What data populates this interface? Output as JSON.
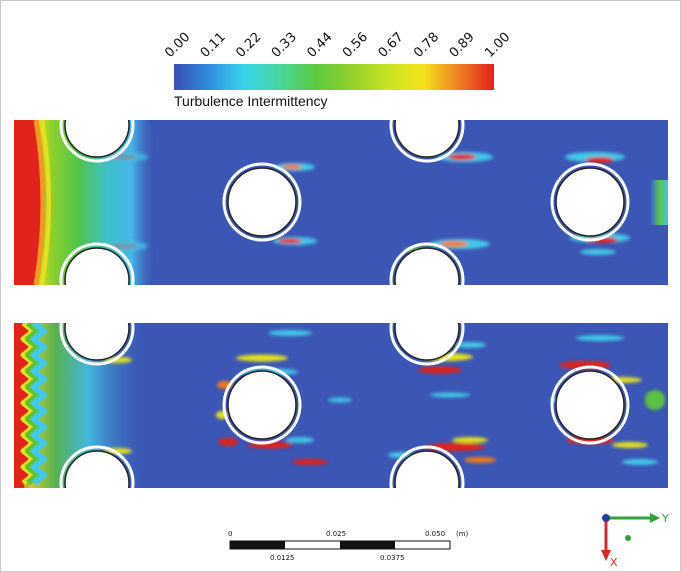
{
  "colorbar": {
    "title": "Turbulence Intermittency",
    "ticks": [
      "0.00",
      "0.11",
      "0.22",
      "0.33",
      "0.44",
      "0.56",
      "0.67",
      "0.78",
      "0.89",
      "1.00"
    ],
    "colors": [
      "#3a4fb4",
      "#2f8ee0",
      "#39d4ec",
      "#48d69a",
      "#5cc93e",
      "#93cf2c",
      "#c8e322",
      "#f3e31c",
      "#f08022",
      "#e0221c"
    ]
  },
  "scale_bar": {
    "top_labels": [
      "0",
      "0.025",
      "0.050",
      "(m)"
    ],
    "bottom_labels": [
      "0.0125",
      "0.0375"
    ]
  },
  "axes": {
    "y_label": "Y",
    "x_label": "X"
  },
  "field_colors": {
    "background": "#3b56b4",
    "cyan": "#43c8e8",
    "green": "#5cc23c",
    "yellow": "#e4e21e",
    "orange": "#ef7a1f",
    "red": "#e0241c"
  }
}
